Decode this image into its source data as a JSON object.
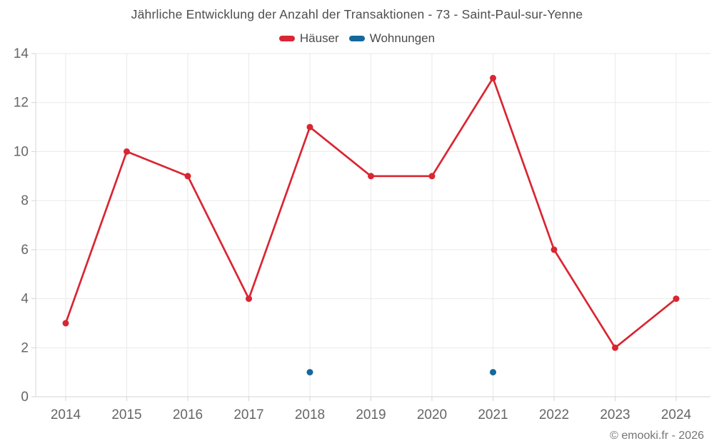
{
  "header": {
    "title": "Jährliche Entwicklung der Anzahl der Transaktionen - 73 - Saint-Paul-sur-Yenne"
  },
  "legend": {
    "items": [
      {
        "label": "Häuser",
        "color": "#d92632"
      },
      {
        "label": "Wohnungen",
        "color": "#15689e"
      }
    ]
  },
  "footer": {
    "copyright": "© emooki.fr - 2026"
  },
  "colors": {
    "grid": "#e9e9e9",
    "axis": "#d6d6d6",
    "tick_text": "#666666"
  },
  "chart_data": {
    "type": "line",
    "title": "Jährliche Entwicklung der Anzahl der Transaktionen - 73 - Saint-Paul-sur-Yenne",
    "categories": [
      "2014",
      "2015",
      "2016",
      "2017",
      "2018",
      "2019",
      "2020",
      "2021",
      "2022",
      "2023",
      "2024"
    ],
    "series": [
      {
        "name": "Häuser",
        "color": "#d92632",
        "marker": "circle",
        "values": [
          3,
          10,
          9,
          4,
          11,
          9,
          9,
          13,
          6,
          2,
          4
        ]
      },
      {
        "name": "Wohnungen",
        "color": "#15689e",
        "marker": "circle",
        "values": [
          null,
          null,
          null,
          null,
          1,
          null,
          null,
          1,
          null,
          null,
          null
        ]
      }
    ],
    "xlabel": "",
    "ylabel": "",
    "ylim": [
      0,
      14
    ],
    "yticks": [
      0,
      2,
      4,
      6,
      8,
      10,
      12,
      14
    ],
    "grid": true,
    "legend_position": "top",
    "annotations": [
      "© emooki.fr - 2026"
    ]
  }
}
